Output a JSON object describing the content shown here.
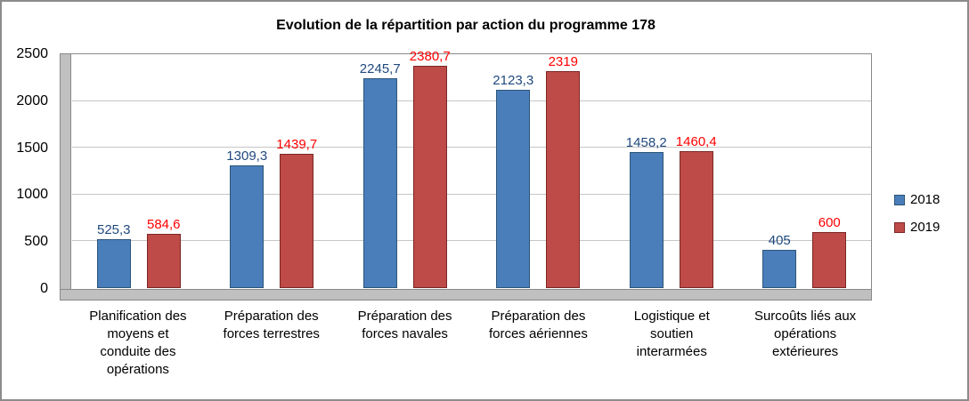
{
  "colors": {
    "accent_2018": "#4a7ebb",
    "accent_2019": "#be4b48",
    "label_2018": "#1f497d",
    "label_2019": "#ff0000",
    "gridline": "#c6c6c6",
    "wall": "#c0c0c0"
  },
  "chart_data": {
    "type": "bar",
    "title": "Evolution de la répartition par action du programme 178",
    "xlabel": "",
    "ylabel": "",
    "ylim": [
      0,
      2500
    ],
    "y_ticks": [
      0,
      500,
      1000,
      1500,
      2000,
      2500
    ],
    "grid": true,
    "legend_position": "right",
    "categories": [
      "Planification des moyens et conduite des opérations",
      "Préparation des forces terrestres",
      "Préparation des forces navales",
      "Préparation des forces aériennes",
      "Logistique et soutien interarmées",
      "Surcoûts liés aux opérations extérieures"
    ],
    "series": [
      {
        "name": "2018",
        "values": [
          525.3,
          1309.3,
          2245.7,
          2123.3,
          1458.2,
          405
        ],
        "labels": [
          "525,3",
          "1309,3",
          "2245,7",
          "2123,3",
          "1458,2",
          "405"
        ]
      },
      {
        "name": "2019",
        "values": [
          584.6,
          1439.7,
          2380.7,
          2319,
          1460.4,
          600
        ],
        "labels": [
          "584,6",
          "1439,7",
          "2380,7",
          "2319",
          "1460,4",
          "600"
        ]
      }
    ]
  }
}
